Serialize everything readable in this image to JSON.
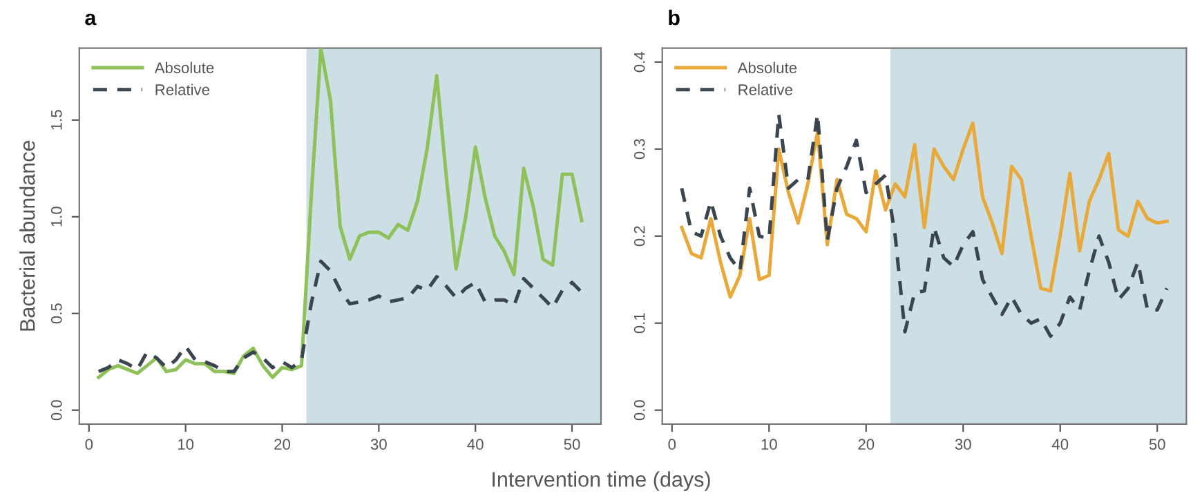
{
  "chart_data": [
    {
      "type": "line",
      "title": "a",
      "xlabel": "Intervention time (days)",
      "ylabel": "Bacterial abundance",
      "x": [
        1,
        2,
        3,
        4,
        5,
        6,
        7,
        8,
        9,
        10,
        11,
        12,
        13,
        14,
        15,
        16,
        17,
        18,
        19,
        20,
        21,
        22,
        23,
        24,
        25,
        26,
        27,
        28,
        29,
        30,
        31,
        32,
        33,
        34,
        35,
        36,
        37,
        38,
        39,
        40,
        41,
        42,
        43,
        44,
        45,
        46,
        47,
        48,
        49,
        50,
        51
      ],
      "series": [
        {
          "name": "Absolute",
          "color": "#8fc15a",
          "line_style": "solid",
          "values": [
            0.17,
            0.21,
            0.23,
            0.21,
            0.19,
            0.23,
            0.27,
            0.2,
            0.21,
            0.26,
            0.24,
            0.24,
            0.2,
            0.2,
            0.19,
            0.28,
            0.32,
            0.23,
            0.17,
            0.22,
            0.21,
            0.23,
            1.1,
            1.87,
            1.6,
            0.95,
            0.78,
            0.9,
            0.92,
            0.92,
            0.89,
            0.96,
            0.93,
            1.08,
            1.35,
            1.73,
            1.2,
            0.73,
            1.0,
            1.36,
            1.1,
            0.9,
            0.82,
            0.7,
            1.25,
            1.05,
            0.78,
            0.75,
            1.22,
            1.22,
            0.98
          ]
        },
        {
          "name": "Relative",
          "color": "#3a4550",
          "line_style": "dashed",
          "values": [
            0.2,
            0.22,
            0.26,
            0.24,
            0.21,
            0.3,
            0.27,
            0.22,
            0.26,
            0.33,
            0.26,
            0.25,
            0.23,
            0.2,
            0.2,
            0.27,
            0.3,
            0.27,
            0.22,
            0.25,
            0.22,
            0.26,
            0.55,
            0.77,
            0.72,
            0.62,
            0.55,
            0.56,
            0.57,
            0.59,
            0.56,
            0.57,
            0.58,
            0.64,
            0.62,
            0.69,
            0.64,
            0.58,
            0.63,
            0.66,
            0.56,
            0.57,
            0.57,
            0.54,
            0.68,
            0.63,
            0.58,
            0.53,
            0.62,
            0.66,
            0.61
          ]
        }
      ],
      "xlim": [
        -1,
        53
      ],
      "ylim": [
        -0.072,
        1.872
      ],
      "xticks": [
        0,
        10,
        20,
        30,
        40,
        50
      ],
      "yticks": [
        {
          "value": 0,
          "label": "0.0"
        },
        {
          "value": 0.5,
          "label": "0.5"
        },
        {
          "value": 1,
          "label": "1.0"
        },
        {
          "value": 1.5,
          "label": "1.5"
        }
      ],
      "bands": [
        {
          "axis": "x",
          "from": 22.5,
          "to": 53,
          "color": "#cbdfe5"
        }
      ],
      "legend": "top left",
      "grid": false
    },
    {
      "type": "line",
      "title": "b",
      "x": [
        1,
        2,
        3,
        4,
        5,
        6,
        7,
        8,
        9,
        10,
        11,
        12,
        13,
        14,
        15,
        16,
        17,
        18,
        19,
        20,
        21,
        22,
        23,
        24,
        25,
        26,
        27,
        28,
        29,
        30,
        31,
        32,
        33,
        34,
        35,
        36,
        37,
        38,
        39,
        40,
        41,
        42,
        43,
        44,
        45,
        46,
        47,
        48,
        49,
        50,
        51
      ],
      "series": [
        {
          "name": "Absolute",
          "color": "#e8a93a",
          "line_style": "solid",
          "values": [
            0.21,
            0.18,
            0.175,
            0.22,
            0.17,
            0.13,
            0.155,
            0.22,
            0.15,
            0.155,
            0.3,
            0.25,
            0.215,
            0.26,
            0.32,
            0.19,
            0.265,
            0.225,
            0.22,
            0.205,
            0.275,
            0.23,
            0.26,
            0.245,
            0.305,
            0.21,
            0.3,
            0.28,
            0.265,
            0.3,
            0.33,
            0.245,
            0.215,
            0.18,
            0.28,
            0.265,
            0.2,
            0.14,
            0.137,
            0.2,
            0.272,
            0.183,
            0.24,
            0.265,
            0.295,
            0.207,
            0.2,
            0.24,
            0.22,
            0.215,
            0.217
          ]
        },
        {
          "name": "Relative",
          "color": "#3a4550",
          "line_style": "dashed",
          "values": [
            0.255,
            0.205,
            0.2,
            0.24,
            0.2,
            0.175,
            0.16,
            0.255,
            0.2,
            0.197,
            0.34,
            0.255,
            0.265,
            0.265,
            0.34,
            0.195,
            0.255,
            0.28,
            0.31,
            0.25,
            0.26,
            0.27,
            0.2,
            0.09,
            0.135,
            0.137,
            0.21,
            0.175,
            0.165,
            0.19,
            0.205,
            0.15,
            0.13,
            0.11,
            0.13,
            0.11,
            0.1,
            0.105,
            0.085,
            0.1,
            0.13,
            0.115,
            0.16,
            0.2,
            0.17,
            0.127,
            0.14,
            0.17,
            0.115,
            0.115,
            0.14
          ]
        }
      ],
      "xlim": [
        -1,
        53
      ],
      "ylim": [
        -0.016,
        0.416
      ],
      "xticks": [
        0,
        10,
        20,
        30,
        40,
        50
      ],
      "yticks": [
        {
          "value": 0,
          "label": "0.0"
        },
        0.1,
        0.2,
        0.3,
        0.4
      ],
      "bands": [
        {
          "axis": "x",
          "from": 22.5,
          "to": 53,
          "color": "#cbdfe5"
        }
      ],
      "legend": "top left",
      "grid": false
    }
  ]
}
